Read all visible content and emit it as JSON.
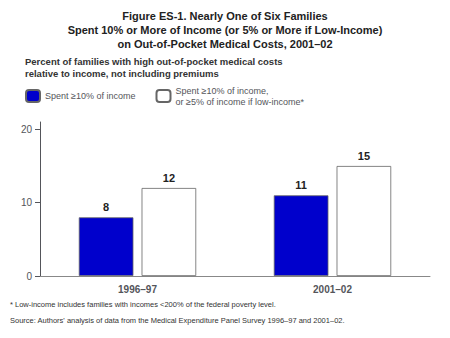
{
  "chart_data": {
    "type": "bar",
    "title": "Figure ES-1. Nearly One of Six Families\nSpent 10% or More of Income (or 5% or More if Low-Income)\non Out-of-Pocket Medical Costs, 2001–02",
    "subtitle": "Percent of families with high out-of-pocket medical costs\nrelative to income, not including premiums",
    "categories": [
      "1996–97",
      "2001–02"
    ],
    "series": [
      {
        "name": "Spent ≥10% of income",
        "color": "#0000CC",
        "values": [
          8,
          11
        ]
      },
      {
        "name": "Spent ≥10% of income,\nor ≥5% of income if low-income*",
        "color": "#FFFFFF",
        "values": [
          12,
          15
        ]
      }
    ],
    "ylim": [
      0,
      21
    ],
    "yticks": [
      0,
      10,
      20
    ],
    "grid": false,
    "legend": "upper left",
    "data_labels": true,
    "footnotes": [
      "* Low-income includes families with incomes <200% of the federal poverty level.",
      "Source: Authors' analysis of data from the Medical Expenditure Panel Survey 1996–97 and 2001–02."
    ]
  }
}
